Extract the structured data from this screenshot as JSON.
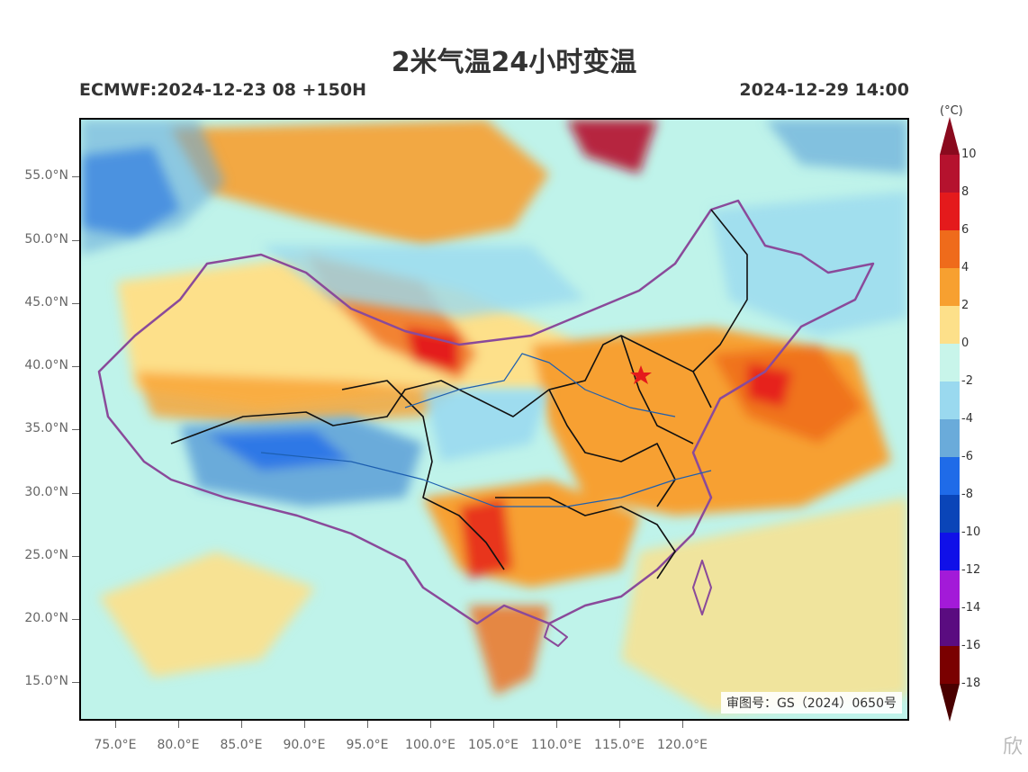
{
  "header": {
    "title": "2米气温24小时变温",
    "model_run": "ECMWF:2024-12-23 08 +150H",
    "valid_time": "2024-12-29 14:00"
  },
  "axes": {
    "lat_labels": [
      "55.0°N",
      "50.0°N",
      "45.0°N",
      "40.0°N",
      "35.0°N",
      "30.0°N",
      "25.0°N",
      "20.0°N",
      "15.0°N"
    ],
    "lon_labels": [
      "75.0°E",
      "80.0°E",
      "85.0°E",
      "90.0°E",
      "95.0°E",
      "100.0°E",
      "105.0°E",
      "110.0°E",
      "115.0°E",
      "120.0°E"
    ]
  },
  "map": {
    "approval_number": "审图号：GS（2024）0650号"
  },
  "colorbar": {
    "unit": "(°C)",
    "labels": [
      "10",
      "8",
      "6",
      "4",
      "2",
      "0",
      "-2",
      "-4",
      "-6",
      "-8",
      "-10",
      "-12",
      "-14",
      "-16",
      "-18"
    ],
    "colors": [
      "#b5122e",
      "#e41a1c",
      "#ef6b1b",
      "#f7a030",
      "#fde08a",
      "#c8f5ea",
      "#9ad9ef",
      "#6aabda",
      "#1f6be8",
      "#0a45b8",
      "#1010e8",
      "#a31ad8",
      "#5a0c80",
      "#7a0000"
    ],
    "top_color": "#8a0a1e",
    "bottom_color": "#4a0000"
  },
  "watermark": "欣"
}
